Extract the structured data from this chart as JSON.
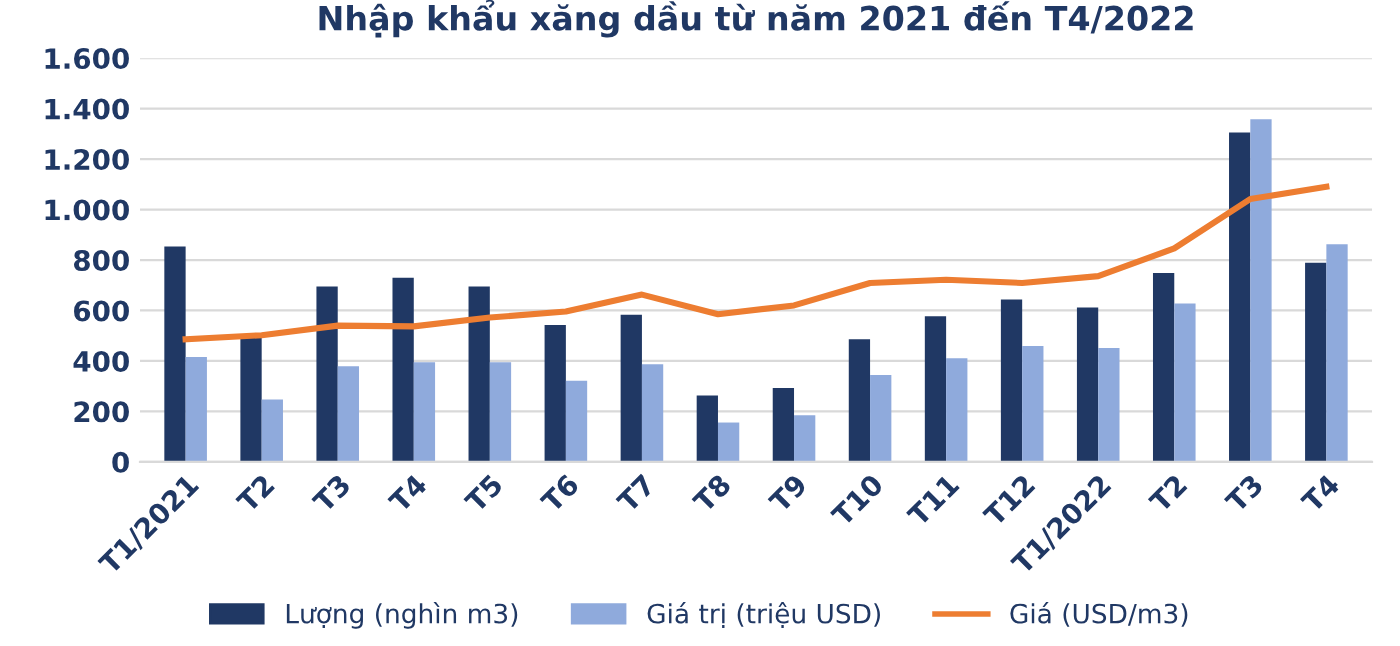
{
  "chart_data": {
    "type": "bar",
    "title": "Nhập khẩu xăng dầu từ năm 2021 đến T4/2022",
    "categories": [
      "T1/2021",
      "T2",
      "T3",
      "T4",
      "T5",
      "T6",
      "T7",
      "T8",
      "T9",
      "T10",
      "T11",
      "T12",
      "T1/2022",
      "T2",
      "T3",
      "T4"
    ],
    "series": [
      {
        "name": "Lượng (nghìn m3)",
        "color": "#203864",
        "values": [
          854,
          499,
          695,
          730,
          695,
          542,
          583,
          263,
          293,
          486,
          577,
          644,
          612,
          749,
          1305,
          789
        ]
      },
      {
        "name": "Giá trị (triệu USD)",
        "color": "#8faadc",
        "values": [
          416,
          247,
          379,
          395,
          395,
          322,
          387,
          156,
          185,
          344,
          411,
          459,
          451,
          628,
          1358,
          862
        ]
      },
      {
        "name": "Giá (USD/m3)",
        "type": "line",
        "color": "#ed7d31",
        "values": [
          486,
          502,
          540,
          537,
          572,
          596,
          663,
          585,
          620,
          709,
          722,
          709,
          736,
          846,
          1042,
          1090
        ]
      }
    ],
    "ylim": [
      0,
      1600
    ],
    "yticks": [
      {
        "value": 0,
        "label": "0"
      },
      {
        "value": 200,
        "label": "200"
      },
      {
        "value": 400,
        "label": "400"
      },
      {
        "value": 600,
        "label": "600"
      },
      {
        "value": 800,
        "label": "800"
      },
      {
        "value": 1000,
        "label": "1.000"
      },
      {
        "value": 1200,
        "label": "1.200"
      },
      {
        "value": 1400,
        "label": "1.400"
      },
      {
        "value": 1600,
        "label": "1.600"
      }
    ],
    "grid": "y",
    "legend": "bottom",
    "marker": "none",
    "line_style": "solid"
  }
}
